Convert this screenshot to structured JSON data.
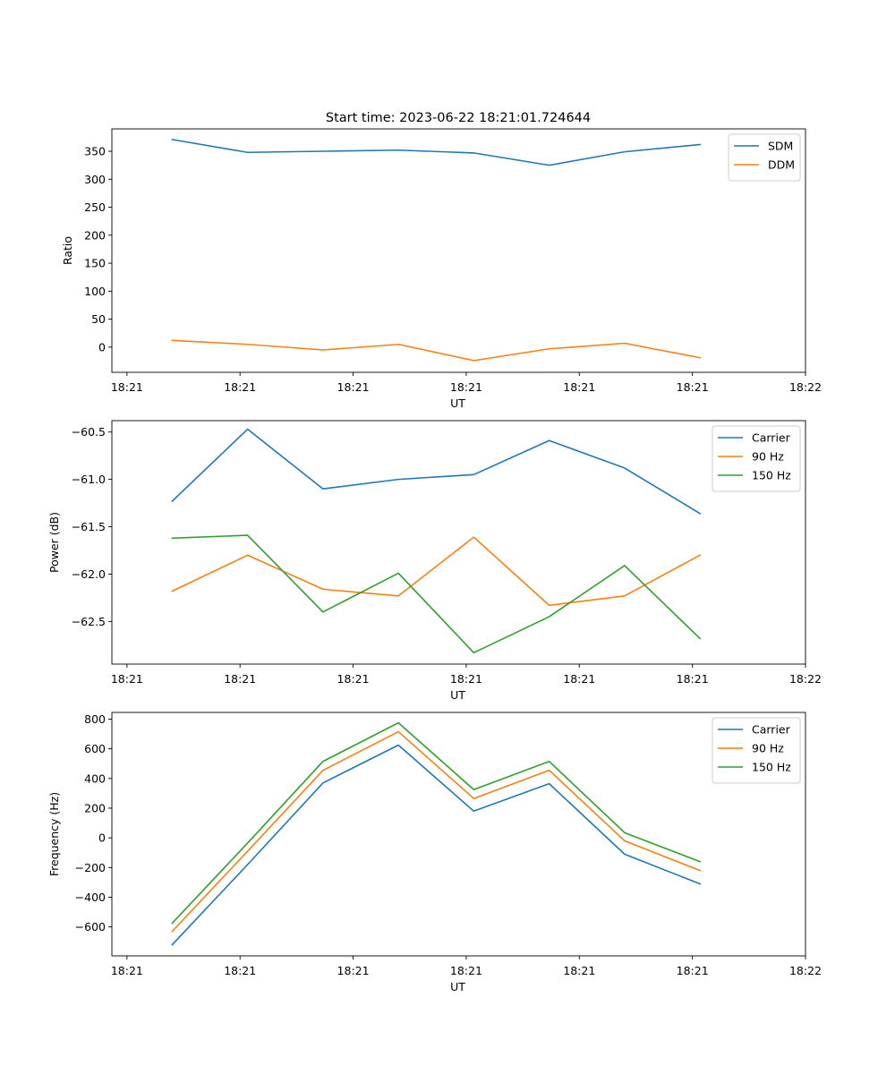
{
  "figure_title": "Start time: 2023-06-22 18:21:01.724644",
  "chart_data": [
    {
      "type": "line",
      "title": "Start time: 2023-06-22 18:21:01.724644",
      "xlabel": "UT",
      "ylabel": "Ratio",
      "x": [
        0.5,
        1,
        1.5,
        2,
        2.5,
        3,
        3.5,
        4
      ],
      "xlim": [
        0.1,
        4.7
      ],
      "x_ticks": [
        0.2,
        0.95,
        1.7,
        2.45,
        3.2,
        3.95,
        4.7
      ],
      "x_tick_labels": [
        "18:21",
        "18:21",
        "18:21",
        "18:21",
        "18:21",
        "18:21",
        "18:22"
      ],
      "ylim": [
        -45,
        390
      ],
      "y_ticks": [
        0,
        50,
        100,
        150,
        200,
        250,
        300,
        350
      ],
      "y_tick_labels": [
        "0",
        "50",
        "100",
        "150",
        "200",
        "250",
        "300",
        "350"
      ],
      "legend_position": "top-right",
      "series": [
        {
          "name": "SDM",
          "color": "#1f77b4",
          "values": [
            371,
            348,
            350,
            352,
            347,
            325,
            349,
            362
          ]
        },
        {
          "name": "DDM",
          "color": "#ff7f0e",
          "values": [
            12,
            5,
            -5,
            5,
            -24,
            -3,
            7,
            -19
          ]
        }
      ]
    },
    {
      "type": "line",
      "title": "",
      "xlabel": "UT",
      "ylabel": "Power (dB)",
      "x": [
        0.5,
        1,
        1.5,
        2,
        2.5,
        3,
        3.5,
        4
      ],
      "xlim": [
        0.1,
        4.7
      ],
      "x_ticks": [
        0.2,
        0.95,
        1.7,
        2.45,
        3.2,
        3.95,
        4.7
      ],
      "x_tick_labels": [
        "18:21",
        "18:21",
        "18:21",
        "18:21",
        "18:21",
        "18:21",
        "18:22"
      ],
      "ylim": [
        -62.95,
        -60.38
      ],
      "y_ticks": [
        -62.5,
        -62.0,
        -61.5,
        -61.0,
        -60.5
      ],
      "y_tick_labels": [
        "−62.5",
        "−62.0",
        "−61.5",
        "−61.0",
        "−60.5"
      ],
      "legend_position": "top-right",
      "series": [
        {
          "name": "Carrier",
          "color": "#1f77b4",
          "values": [
            -61.23,
            -60.47,
            -61.1,
            -61.0,
            -60.95,
            -60.59,
            -60.88,
            -61.36
          ]
        },
        {
          "name": "90 Hz",
          "color": "#ff7f0e",
          "values": [
            -62.18,
            -61.8,
            -62.16,
            -62.23,
            -61.61,
            -62.33,
            -62.23,
            -61.8
          ]
        },
        {
          "name": "150 Hz",
          "color": "#2ca02c",
          "values": [
            -61.62,
            -61.59,
            -62.4,
            -61.99,
            -62.83,
            -62.45,
            -61.91,
            -62.68
          ]
        }
      ]
    },
    {
      "type": "line",
      "title": "",
      "xlabel": "UT",
      "ylabel": "Frequency (Hz)",
      "x": [
        0.5,
        1,
        1.5,
        2,
        2.5,
        3,
        3.5,
        4
      ],
      "xlim": [
        0.1,
        4.7
      ],
      "x_ticks": [
        0.2,
        0.95,
        1.7,
        2.45,
        3.2,
        3.95,
        4.7
      ],
      "x_tick_labels": [
        "18:21",
        "18:21",
        "18:21",
        "18:21",
        "18:21",
        "18:21",
        "18:22"
      ],
      "ylim": [
        -795,
        845
      ],
      "y_ticks": [
        -600,
        -400,
        -200,
        0,
        200,
        400,
        600,
        800
      ],
      "y_tick_labels": [
        "−600",
        "−400",
        "−200",
        "0",
        "200",
        "400",
        "600",
        "800"
      ],
      "legend_position": "top-right",
      "series": [
        {
          "name": "Carrier",
          "color": "#1f77b4",
          "values": [
            -720,
            -180,
            370,
            625,
            180,
            365,
            -110,
            -310
          ]
        },
        {
          "name": "90 Hz",
          "color": "#ff7f0e",
          "values": [
            -630,
            -90,
            455,
            715,
            265,
            455,
            -20,
            -220
          ]
        },
        {
          "name": "150 Hz",
          "color": "#2ca02c",
          "values": [
            -575,
            -35,
            515,
            775,
            325,
            515,
            35,
            -160
          ]
        }
      ]
    }
  ]
}
